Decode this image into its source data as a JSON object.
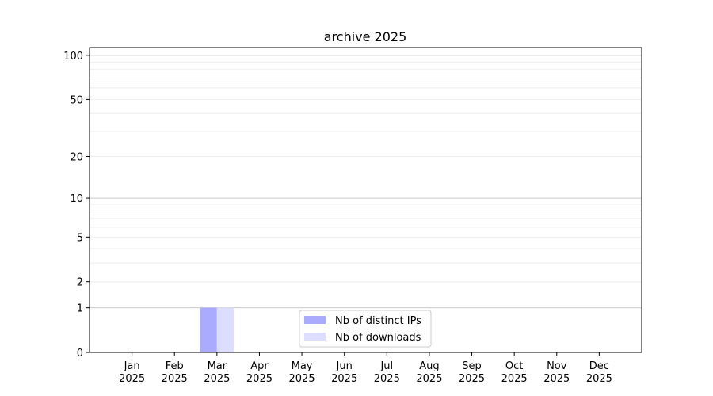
{
  "chart_data": {
    "type": "bar",
    "title": "archive 2025",
    "xlabel": "",
    "ylabel": "",
    "categories": [
      "Jan\n2025",
      "Feb\n2025",
      "Mar\n2025",
      "Apr\n2025",
      "May\n2025",
      "Jun\n2025",
      "Jul\n2025",
      "Aug\n2025",
      "Sep\n2025",
      "Oct\n2025",
      "Nov\n2025",
      "Dec\n2025"
    ],
    "series": [
      {
        "name": "Nb of distinct IPs",
        "color": "#aaaaff",
        "values": [
          0,
          0,
          1,
          0,
          0,
          0,
          0,
          0,
          0,
          0,
          0,
          0
        ]
      },
      {
        "name": "Nb of downloads",
        "color": "#ddddff",
        "values": [
          0,
          0,
          1,
          0,
          0,
          0,
          0,
          0,
          0,
          0,
          0,
          0
        ]
      }
    ],
    "yscale": "log(1+y)",
    "ylim": [
      0,
      113
    ],
    "yticks": [
      0,
      1,
      2,
      5,
      10,
      20,
      50,
      100
    ],
    "grid": true,
    "legend": "lower-center"
  }
}
